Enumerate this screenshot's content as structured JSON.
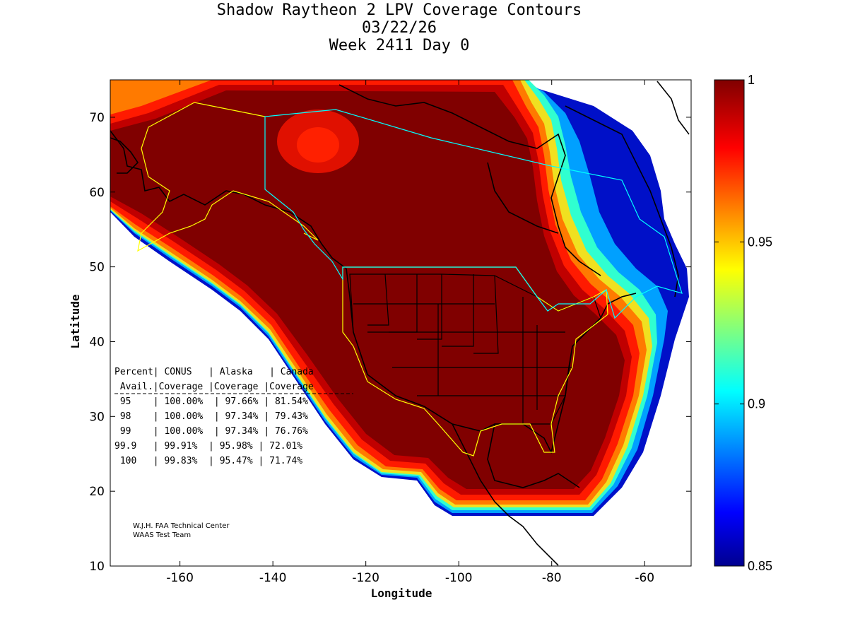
{
  "title": {
    "line1": "Shadow Raytheon 2 LPV Coverage Contours",
    "line2": "03/22/26",
    "line3": "Week 2411 Day 0"
  },
  "axes": {
    "xlabel": "Longitude",
    "ylabel": "Latitude",
    "xticks": [
      "-160",
      "-140",
      "-120",
      "-100",
      "-80",
      "-60"
    ],
    "xtick_values": [
      -160,
      -140,
      -120,
      -100,
      -80,
      -60
    ],
    "yticks": [
      "10",
      "20",
      "30",
      "40",
      "50",
      "60",
      "70"
    ],
    "ytick_values": [
      10,
      20,
      30,
      40,
      50,
      60,
      70
    ],
    "xlim": [
      -175,
      -50
    ],
    "ylim": [
      10,
      75
    ]
  },
  "colorbar": {
    "ticks": [
      "1",
      "0.95",
      "0.9",
      "0.85"
    ],
    "tick_values": [
      1,
      0.95,
      0.9,
      0.85
    ],
    "range": [
      0.85,
      1
    ],
    "colormap": "jet"
  },
  "table": {
    "header1": "Percent| CONUS   | Alaska   | Canada",
    "header2": " Avail.|Coverage |Coverage |Coverage",
    "rows": [
      " 95    | 100.00%  | 97.66% | 81.54%",
      " 98    | 100.00%  | 97.34% | 79.43%",
      " 99    | 100.00%  | 97.34% | 76.76%",
      "99.9   | 99.91%  | 95.98% | 72.01%",
      " 100   | 99.83%  | 95.47% | 71.74%"
    ]
  },
  "credit": {
    "line1": "W.J.H. FAA Technical Center",
    "line2": "WAAS Test Team"
  },
  "colors": {
    "full_coverage": "#800000",
    "low_coverage": "#00008f",
    "conus_outline": "#ffff00",
    "canada_alaska_outline": "#00ffff"
  }
}
